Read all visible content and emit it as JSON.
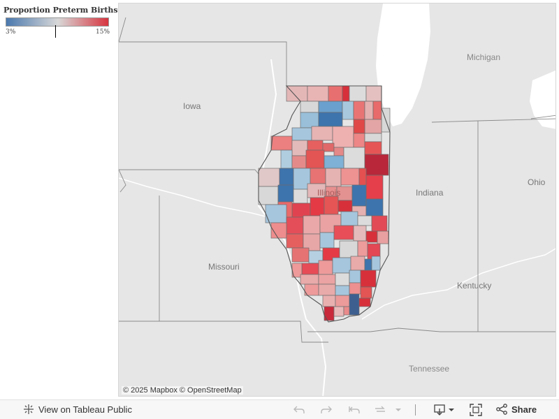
{
  "legend": {
    "title": "Proportion  Preterm  Births",
    "min_label": "3%",
    "max_label": "15%",
    "color_low": "#4a78ad",
    "color_mid": "#d8d8d8",
    "color_high": "#d7303b"
  },
  "map": {
    "labels": {
      "michigan": "Michigan",
      "iowa": "Iowa",
      "illinois": "Illinois",
      "indiana": "Indiana",
      "ohio": "Ohio",
      "missouri": "Missouri",
      "kentucky": "Kentucky",
      "tennessee": "Tennessee"
    },
    "attribution": "© 2025 Mapbox  © OpenStreetMap",
    "water_color": "#ffffff",
    "land_color": "#e6e6e6"
  },
  "toolbar": {
    "view_label": "View on Tableau Public",
    "share_label": "Share",
    "icons": [
      "undo-icon",
      "redo-icon",
      "revert-icon",
      "refresh-icon",
      "download-icon",
      "fullscreen-icon",
      "share-icon"
    ]
  }
}
